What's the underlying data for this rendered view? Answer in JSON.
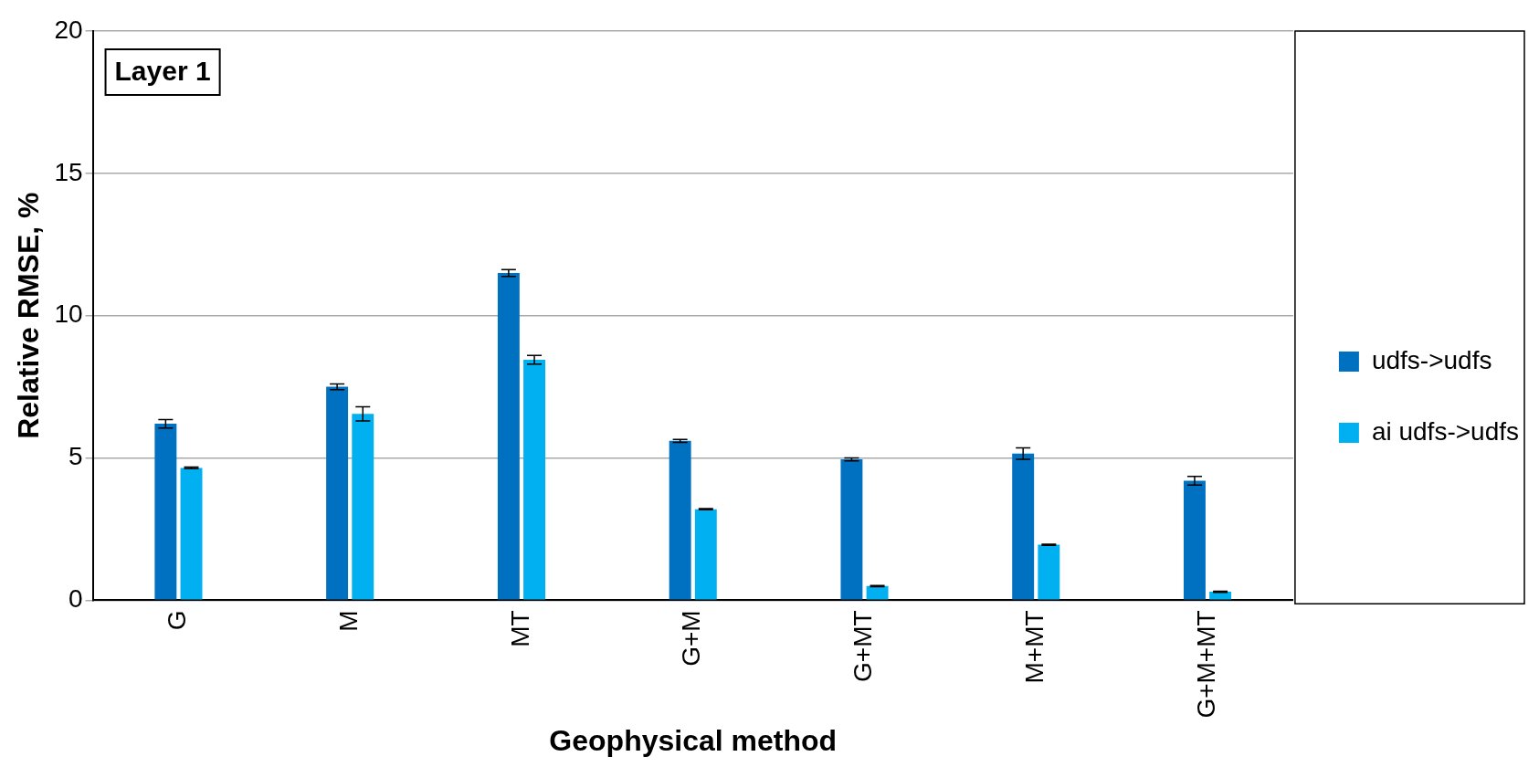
{
  "chart_data": {
    "type": "bar",
    "xlabel": "Geophysical method",
    "ylabel": "Relative RMSE, %",
    "annotations": [
      "Layer 1"
    ],
    "categories": [
      "G",
      "M",
      "MT",
      "G+M",
      "G+MT",
      "M+MT",
      "G+M+MT"
    ],
    "series": [
      {
        "name": "udfs->udfs",
        "color": "#0070c0",
        "values": [
          6.2,
          7.5,
          11.5,
          5.6,
          4.95,
          5.15,
          4.2
        ],
        "errors": [
          0.15,
          0.1,
          0.12,
          0.05,
          0.05,
          0.2,
          0.15
        ]
      },
      {
        "name": "ai udfs->udfs",
        "color": "#00b0f0",
        "values": [
          4.65,
          6.55,
          8.45,
          3.2,
          0.5,
          1.95,
          0.3
        ],
        "errors": [
          0.03,
          0.25,
          0.15,
          0.02,
          0.02,
          0.02,
          0.02
        ]
      }
    ],
    "ylim": [
      0,
      20
    ],
    "yticks": [
      0,
      5,
      10,
      15,
      20
    ],
    "grid": "y",
    "legend": "right"
  }
}
